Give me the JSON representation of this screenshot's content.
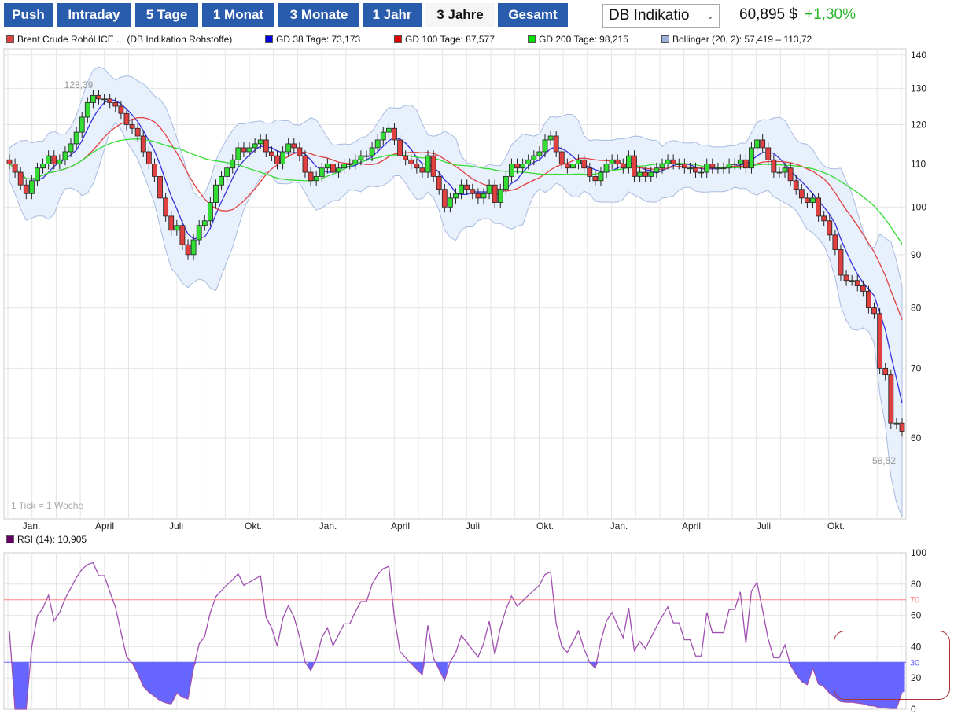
{
  "toolbar": {
    "buttons": [
      "Push",
      "Intraday",
      "5 Tage",
      "1 Monat",
      "3 Monate",
      "1 Jahr",
      "3 Jahre",
      "Gesamt"
    ],
    "selected": "3 Jahre"
  },
  "source_select": {
    "value": "DB Indikatio"
  },
  "quote": {
    "price": "60,895 $",
    "change": "+1,30%",
    "change_color": "#2db52d"
  },
  "legend": [
    {
      "label": "Brent Crude Rohöl ICE ... (DB Indikation Rohstoffe)",
      "color": "#e04040"
    },
    {
      "label": "GD 38 Tage: 73,173",
      "color": "#0000e0"
    },
    {
      "label": "GD 100 Tage: 87,577",
      "color": "#e00000"
    },
    {
      "label": "GD 200 Tage: 98,215",
      "color": "#00e000"
    },
    {
      "label": "Bollinger (20, 2): 57,419 – 113,72",
      "color": "#9ab0d8"
    }
  ],
  "rsi_legend": {
    "label": "RSI (14): 10,905",
    "color": "#660066"
  },
  "tick_note": "1 Tick = 1 Woche",
  "chart_data": {
    "type": "candlestick",
    "interval": "weekly",
    "y_scale": "log",
    "ylim": [
      52,
      142
    ],
    "y_ticks": [
      60,
      70,
      80,
      90,
      100,
      110,
      120,
      130,
      140
    ],
    "x_ticks": [
      "Jan.",
      "April",
      "Juli",
      "Okt.",
      "Jan.",
      "April",
      "Juli",
      "Okt.",
      "Jan.",
      "April",
      "Juli",
      "Okt."
    ],
    "annotations": {
      "max": "128,39",
      "min": "58,52"
    },
    "up_color": "#33dd33",
    "down_color": "#e04040",
    "closes": [
      110,
      108,
      105,
      103,
      106,
      109,
      110,
      112,
      110,
      111,
      113,
      115,
      118,
      122,
      126,
      128,
      127,
      127,
      126,
      125,
      123,
      120,
      119,
      117,
      113,
      110,
      107,
      102,
      98,
      95,
      96,
      92,
      90,
      93,
      96,
      97,
      101,
      105,
      107,
      109,
      111,
      114,
      113,
      114,
      115,
      116,
      113,
      112,
      110,
      113,
      115,
      114,
      112,
      108,
      106,
      107,
      109,
      110,
      108,
      109,
      110,
      110,
      111,
      112,
      112,
      114,
      116,
      118,
      119,
      116,
      112,
      111,
      110,
      109,
      108,
      112,
      107,
      104,
      100,
      102,
      103,
      105,
      104,
      103,
      102,
      103,
      105,
      101,
      104,
      107,
      110,
      109,
      110,
      111,
      112,
      113,
      116,
      117,
      113,
      110,
      109,
      110,
      111,
      109,
      107,
      106,
      108,
      110,
      111,
      110,
      109,
      112,
      107,
      108,
      107,
      108,
      109,
      110,
      111,
      110,
      110,
      109,
      109,
      108,
      108,
      110,
      109,
      109,
      109,
      110,
      110,
      111,
      109,
      114,
      116,
      114,
      111,
      108,
      108,
      109,
      106,
      104,
      102,
      101,
      102,
      98,
      97,
      94,
      91,
      86,
      85,
      85,
      84,
      83,
      80,
      79,
      70,
      69,
      62,
      62,
      60.9
    ],
    "rsi": {
      "ylim": [
        0,
        100
      ],
      "y_ticks": [
        0,
        20,
        40,
        60,
        80,
        100
      ],
      "overbought": 70,
      "oversold": 30,
      "overbought_color": "#ff8080",
      "oversold_color": "#6666ff",
      "line_color": "#a050b0"
    }
  }
}
